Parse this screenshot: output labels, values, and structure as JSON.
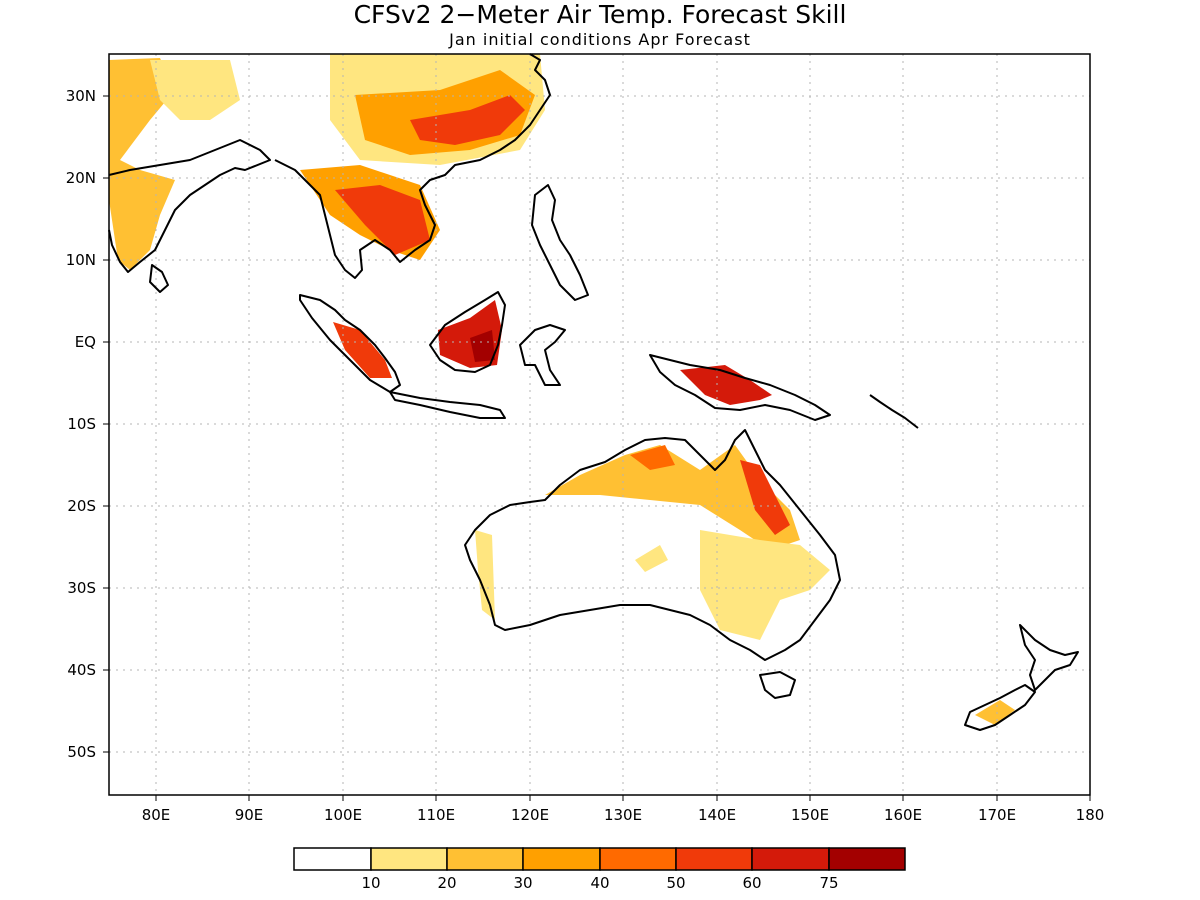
{
  "title": "CFSv2 2−Meter Air Temp. Forecast Skill",
  "subtitle": "Jan initial conditions  Apr Forecast",
  "map": {
    "lon_range": [
      75,
      180
    ],
    "lat_range": [
      -55,
      35
    ],
    "x_ticks": [
      "80E",
      "90E",
      "100E",
      "110E",
      "120E",
      "130E",
      "140E",
      "150E",
      "160E",
      "170E",
      "180"
    ],
    "y_ticks": [
      "30N",
      "20N",
      "10N",
      "EQ",
      "10S",
      "20S",
      "30S",
      "40S",
      "50S"
    ],
    "grid": true
  },
  "colorbar": {
    "labels": [
      "10",
      "20",
      "30",
      "40",
      "50",
      "60",
      "75"
    ],
    "colors": [
      "#ffffff",
      "#ffe680",
      "#ffc033",
      "#ffa000",
      "#ff6a00",
      "#f03a0a",
      "#d41a0a",
      "#a30000"
    ]
  }
}
